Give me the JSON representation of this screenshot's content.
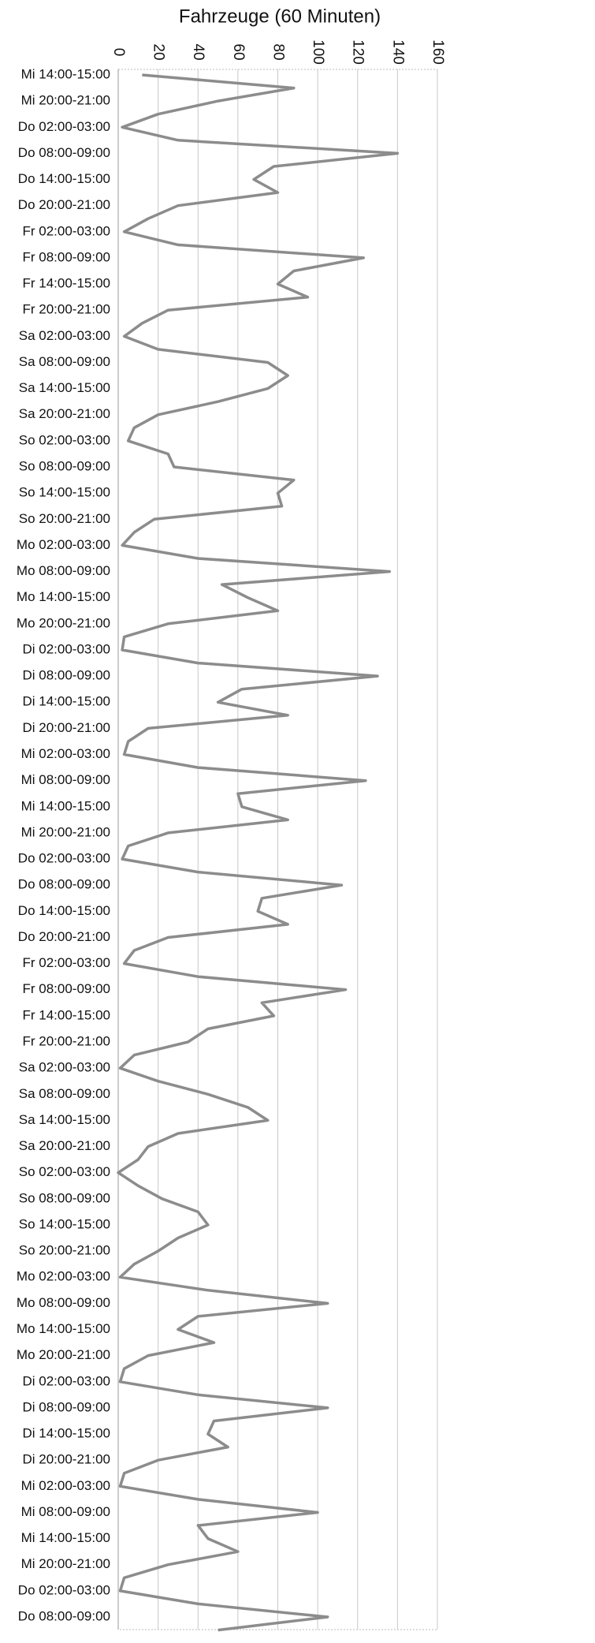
{
  "chart_data": {
    "type": "line",
    "orientation": "horizontal",
    "value_axis_label": "Fahrzeuge (60 Minuten)",
    "categories": [
      "Mi 14:00-15:00",
      null,
      "Mi 20:00-21:00",
      null,
      "Do 02:00-03:00",
      null,
      "Do 08:00-09:00",
      null,
      "Do 14:00-15:00",
      null,
      "Do 20:00-21:00",
      null,
      "Fr 02:00-03:00",
      null,
      "Fr 08:00-09:00",
      null,
      "Fr 14:00-15:00",
      null,
      "Fr 20:00-21:00",
      null,
      "Sa 02:00-03:00",
      null,
      "Sa 08:00-09:00",
      null,
      "Sa 14:00-15:00",
      null,
      "Sa 20:00-21:00",
      null,
      "So 02:00-03:00",
      null,
      "So 08:00-09:00",
      null,
      "So 14:00-15:00",
      null,
      "So 20:00-21:00",
      null,
      "Mo 02:00-03:00",
      null,
      "Mo 08:00-09:00",
      null,
      "Mo 14:00-15:00",
      null,
      "Mo 20:00-21:00",
      null,
      "Di 02:00-03:00",
      null,
      "Di 08:00-09:00",
      null,
      "Di 14:00-15:00",
      null,
      "Di 20:00-21:00",
      null,
      "Mi 02:00-03:00",
      null,
      "Mi 08:00-09:00",
      null,
      "Mi 14:00-15:00",
      null,
      "Mi 20:00-21:00",
      null,
      "Do 02:00-03:00",
      null,
      "Do 08:00-09:00",
      null,
      "Do 14:00-15:00",
      null,
      "Do 20:00-21:00",
      null,
      "Fr 02:00-03:00",
      null,
      "Fr 08:00-09:00",
      null,
      "Fr 14:00-15:00",
      null,
      "Fr 20:00-21:00",
      null,
      "Sa 02:00-03:00",
      null,
      "Sa 08:00-09:00",
      null,
      "Sa 14:00-15:00",
      null,
      "Sa 20:00-21:00",
      null,
      "So 02:00-03:00",
      null,
      "So 08:00-09:00",
      null,
      "So 14:00-15:00",
      null,
      "So 20:00-21:00",
      null,
      "Mo 02:00-03:00",
      null,
      "Mo 08:00-09:00",
      null,
      "Mo 14:00-15:00",
      null,
      "Mo 20:00-21:00",
      null,
      "Di 02:00-03:00",
      null,
      "Di 08:00-09:00",
      null,
      "Di 14:00-15:00",
      null,
      "Di 20:00-21:00",
      null,
      "Mi 02:00-03:00",
      null,
      "Mi 08:00-09:00",
      null,
      "Mi 14:00-15:00",
      null,
      "Mi 20:00-21:00",
      null,
      "Do 02:00-03:00",
      null,
      "Do 08:00-09:00",
      null
    ],
    "values": [
      12,
      88,
      50,
      20,
      2,
      30,
      140,
      78,
      68,
      80,
      30,
      15,
      3,
      30,
      123,
      88,
      80,
      95,
      25,
      12,
      3,
      20,
      75,
      85,
      75,
      50,
      20,
      8,
      5,
      25,
      28,
      88,
      80,
      82,
      18,
      8,
      2,
      40,
      136,
      52,
      65,
      80,
      25,
      3,
      2,
      40,
      130,
      62,
      50,
      85,
      15,
      5,
      3,
      40,
      124,
      60,
      62,
      85,
      25,
      5,
      2,
      40,
      112,
      72,
      70,
      85,
      25,
      8,
      3,
      40,
      114,
      72,
      78,
      45,
      35,
      8,
      1,
      20,
      45,
      65,
      75,
      30,
      15,
      10,
      0,
      10,
      22,
      40,
      45,
      30,
      20,
      8,
      1,
      45,
      105,
      40,
      30,
      48,
      15,
      3,
      1,
      40,
      105,
      48,
      45,
      55,
      20,
      3,
      1,
      40,
      100,
      40,
      45,
      60,
      25,
      3,
      1,
      40,
      105,
      50
    ],
    "color": "#8c8c8c",
    "xlim": [
      0,
      160
    ],
    "xticks": [
      0,
      20,
      40,
      60,
      80,
      100,
      120,
      140,
      160
    ],
    "grid": true
  }
}
